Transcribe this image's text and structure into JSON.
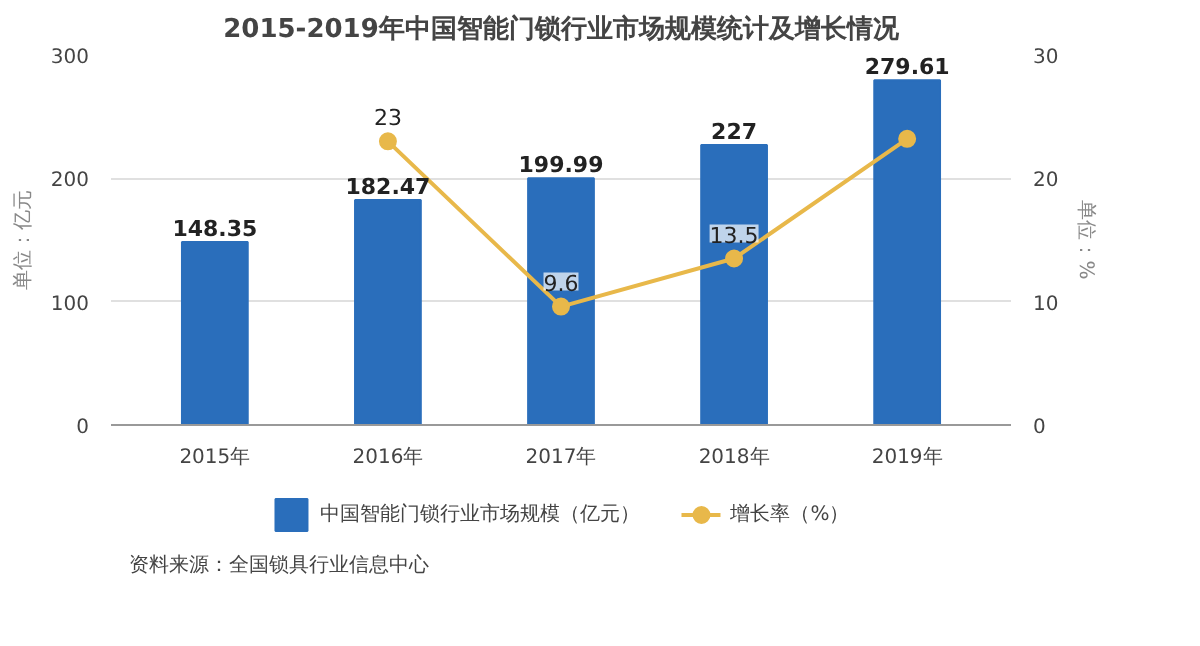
{
  "chart_data": {
    "type": "bar",
    "title": "2015-2019年中国智能门锁行业市场规模统计及增长情况",
    "categories": [
      "2015年",
      "2016年",
      "2017年",
      "2018年",
      "2019年"
    ],
    "series": [
      {
        "name": "中国智能门锁行业市场规模（亿元）",
        "color": "#2a6ebb",
        "values": [
          148.35,
          182.47,
          199.99,
          227,
          279.61
        ],
        "value_labels": [
          "148.35",
          "182.47",
          "199.99",
          "227",
          "279.61"
        ]
      },
      {
        "name": "增长率（%）",
        "type": "line",
        "axis": "y2",
        "color": "#e8b84a",
        "marker": "circle",
        "values": [
          null,
          23,
          9.6,
          13.5,
          23.2
        ],
        "value_labels": [
          null,
          "23",
          "9.6",
          "13.5",
          null
        ]
      }
    ],
    "ylabel": "单位：亿元",
    "y2label": "单位：%",
    "ylim": [
      0,
      300
    ],
    "yticks": [
      0,
      100,
      200,
      300
    ],
    "y2lim": [
      0,
      30
    ],
    "y2ticks": [
      0,
      10,
      20,
      30
    ],
    "grid": "y",
    "legend": "bottom",
    "annotations": [
      "资料来源：全国锁具行业信息中心"
    ]
  }
}
